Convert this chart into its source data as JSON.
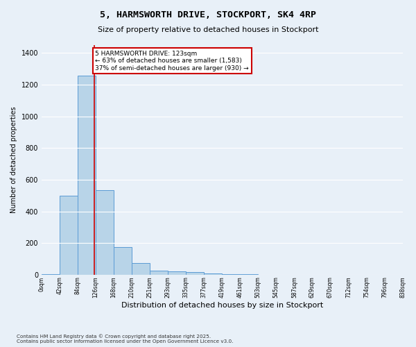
{
  "title1": "5, HARMSWORTH DRIVE, STOCKPORT, SK4 4RP",
  "title2": "Size of property relative to detached houses in Stockport",
  "xlabel": "Distribution of detached houses by size in Stockport",
  "ylabel": "Number of detached properties",
  "footnote": "Contains HM Land Registry data © Crown copyright and database right 2025.\nContains public sector information licensed under the Open Government Licence v3.0.",
  "bin_edge_labels": [
    "0sqm",
    "42sqm",
    "84sqm",
    "126sqm",
    "168sqm",
    "210sqm",
    "251sqm",
    "293sqm",
    "335sqm",
    "377sqm",
    "419sqm",
    "461sqm",
    "503sqm",
    "545sqm",
    "587sqm",
    "629sqm",
    "670sqm",
    "712sqm",
    "754sqm",
    "796sqm",
    "838sqm"
  ],
  "bar_heights": [
    3,
    500,
    1255,
    535,
    175,
    75,
    25,
    20,
    15,
    8,
    5,
    2,
    1,
    0,
    0,
    0,
    0,
    0,
    0,
    0
  ],
  "bar_color": "#b8d4e8",
  "bar_edge_color": "#5b9bd5",
  "property_line_x": 123,
  "property_line_color": "#cc0000",
  "annotation_text": "5 HARMSWORTH DRIVE: 123sqm\n← 63% of detached houses are smaller (1,583)\n37% of semi-detached houses are larger (930) →",
  "annotation_box_color": "#cc0000",
  "ylim": [
    0,
    1450
  ],
  "yticks": [
    0,
    200,
    400,
    600,
    800,
    1000,
    1200,
    1400
  ],
  "bg_color": "#e8f0f8",
  "grid_color": "#ffffff",
  "bin_width": 42
}
